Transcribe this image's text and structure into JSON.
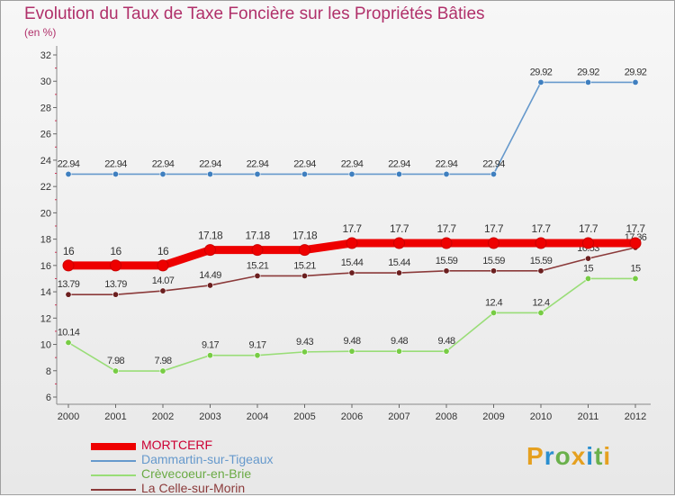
{
  "chart_data": {
    "type": "line",
    "title": "Evolution du Taux de Taxe Foncière sur les Propriétés Bâties",
    "subtitle": "(en %)",
    "xlabel": "",
    "ylabel": "(en %)",
    "ylim": [
      6,
      32
    ],
    "yticks": [
      "6",
      "8",
      "10",
      "12",
      "14",
      "16",
      "18",
      "20",
      "22",
      "24",
      "26",
      "28",
      "30",
      "32"
    ],
    "categories": [
      "2000",
      "2001",
      "2002",
      "2003",
      "2004",
      "2005",
      "2006",
      "2007",
      "2008",
      "2009",
      "2010",
      "2011",
      "2012"
    ],
    "series": [
      {
        "name": "Dammartin-sur-Tigeaux",
        "color": "#6699cc",
        "marker": "#3f7fbf",
        "values": [
          22.94,
          22.94,
          22.94,
          22.94,
          22.94,
          22.94,
          22.94,
          22.94,
          22.94,
          22.94,
          29.92,
          29.92,
          29.92
        ],
        "labels": [
          "22.94",
          "22.94",
          "22.94",
          "22.94",
          "22.94",
          "22.94",
          "22.94",
          "22.94",
          "22.94",
          "22.94",
          "29.92",
          "29.92",
          "29.92"
        ]
      },
      {
        "name": "Crèvecoeur-en-Brie",
        "color": "#99dd77",
        "marker": "#77cc44",
        "values": [
          10.14,
          7.98,
          7.98,
          9.17,
          9.17,
          9.43,
          9.48,
          9.48,
          9.48,
          12.4,
          12.4,
          15,
          15
        ],
        "labels": [
          "10.14",
          "7.98",
          "7.98",
          "9.17",
          "9.17",
          "9.43",
          "9.48",
          "9.48",
          "9.48",
          "12.4",
          "12.4",
          "15",
          "15"
        ]
      },
      {
        "name": "La Celle-sur-Morin",
        "color": "#8b3a3a",
        "marker": "#6b1f1f",
        "values": [
          13.79,
          13.79,
          14.07,
          14.49,
          15.21,
          15.21,
          15.44,
          15.44,
          15.59,
          15.59,
          15.59,
          16.53,
          17.36
        ],
        "labels": [
          "13.79",
          "13.79",
          "14.07",
          "14.49",
          "15.21",
          "15.21",
          "15.44",
          "15.44",
          "15.59",
          "15.59",
          "15.59",
          "16.53",
          "17.36"
        ]
      },
      {
        "name": "MORTCERF",
        "color": "#ee0000",
        "marker": "#ee0000",
        "emphasis": true,
        "values": [
          16,
          16,
          16,
          17.18,
          17.18,
          17.18,
          17.7,
          17.7,
          17.7,
          17.7,
          17.7,
          17.7,
          17.7
        ],
        "labels": [
          "16",
          "16",
          "16",
          "17.18",
          "17.18",
          "17.18",
          "17.7",
          "17.7",
          "17.7",
          "17.7",
          "17.7",
          "17.7",
          "17.7"
        ]
      }
    ],
    "legend": [
      {
        "name": "MORTCERF",
        "color": "#ee0000",
        "emphasis": true
      },
      {
        "name": "Dammartin-sur-Tigeaux",
        "color": "#6699cc"
      },
      {
        "name": "Crèvecoeur-en-Brie",
        "color": "#99dd77"
      },
      {
        "name": "La Celle-sur-Morin",
        "color": "#8b3a3a"
      }
    ],
    "legend_position": "bottom-left",
    "grid": false
  },
  "logo": {
    "letters": [
      "P",
      "r",
      "o",
      "x",
      "i",
      "t",
      "i"
    ],
    "colors": [
      "#e5a020",
      "#2a8fd0",
      "#6ab04c",
      "#e5a020",
      "#2a8fd0",
      "#6ab04c",
      "#e5a020"
    ]
  }
}
